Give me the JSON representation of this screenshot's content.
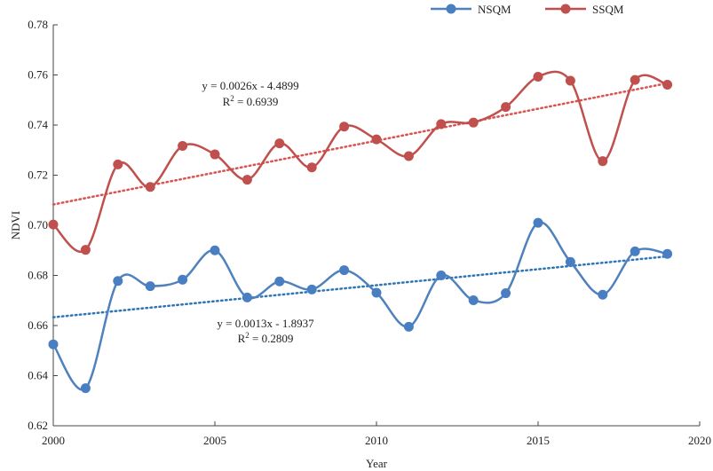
{
  "chart_data": {
    "type": "line",
    "title": "",
    "xlabel": "Year",
    "ylabel": "NDVI",
    "xlim": [
      2000,
      2020
    ],
    "ylim": [
      0.62,
      0.78
    ],
    "x_ticks": [
      "2000",
      "2005",
      "2010",
      "2015",
      "2020"
    ],
    "y_ticks": [
      "0.62",
      "0.64",
      "0.66",
      "0.68",
      "0.70",
      "0.72",
      "0.74",
      "0.76",
      "0.78"
    ],
    "grid": false,
    "legend_position": "top-right",
    "x": [
      2000,
      2001,
      2002,
      2003,
      2004,
      2005,
      2006,
      2007,
      2008,
      2009,
      2010,
      2011,
      2012,
      2013,
      2014,
      2015,
      2016,
      2017,
      2018,
      2019
    ],
    "series": [
      {
        "name": "NSQM",
        "color": "#4a7ec2",
        "line_color": "#4f81bd",
        "values": [
          0.6525,
          0.635,
          0.6778,
          0.6757,
          0.6783,
          0.69,
          0.6712,
          0.6776,
          0.6744,
          0.6821,
          0.6731,
          0.6595,
          0.68,
          0.6701,
          0.6729,
          0.701,
          0.6854,
          0.6723,
          0.6896,
          0.6886
        ],
        "trend": {
          "slope": 0.0013,
          "intercept": -1.8937,
          "start": [
            2000,
            0.6633
          ],
          "end": [
            2019,
            0.6876
          ],
          "equation": "y = 0.0013x - 1.8937",
          "r2_label": "R",
          "r2_sup": "2",
          "r2_value": " = 0.2809",
          "color": "#2e75b6"
        }
      },
      {
        "name": "SSQM",
        "color": "#c0504d",
        "line_color": "#c0504d",
        "values": [
          0.7003,
          0.6902,
          0.7243,
          0.7153,
          0.7317,
          0.7283,
          0.7182,
          0.7327,
          0.7231,
          0.7394,
          0.7343,
          0.7276,
          0.7404,
          0.741,
          0.7472,
          0.7593,
          0.7577,
          0.7256,
          0.758,
          0.7561
        ],
        "trend": {
          "slope": 0.0026,
          "intercept": -4.4899,
          "start": [
            2000,
            0.7083
          ],
          "end": [
            2019,
            0.7567
          ],
          "equation": "y = 0.0026x - 4.4899",
          "r2_label": "R",
          "r2_sup": "2",
          "r2_value": " = 0.6939",
          "color": "#d9534f"
        }
      }
    ]
  }
}
